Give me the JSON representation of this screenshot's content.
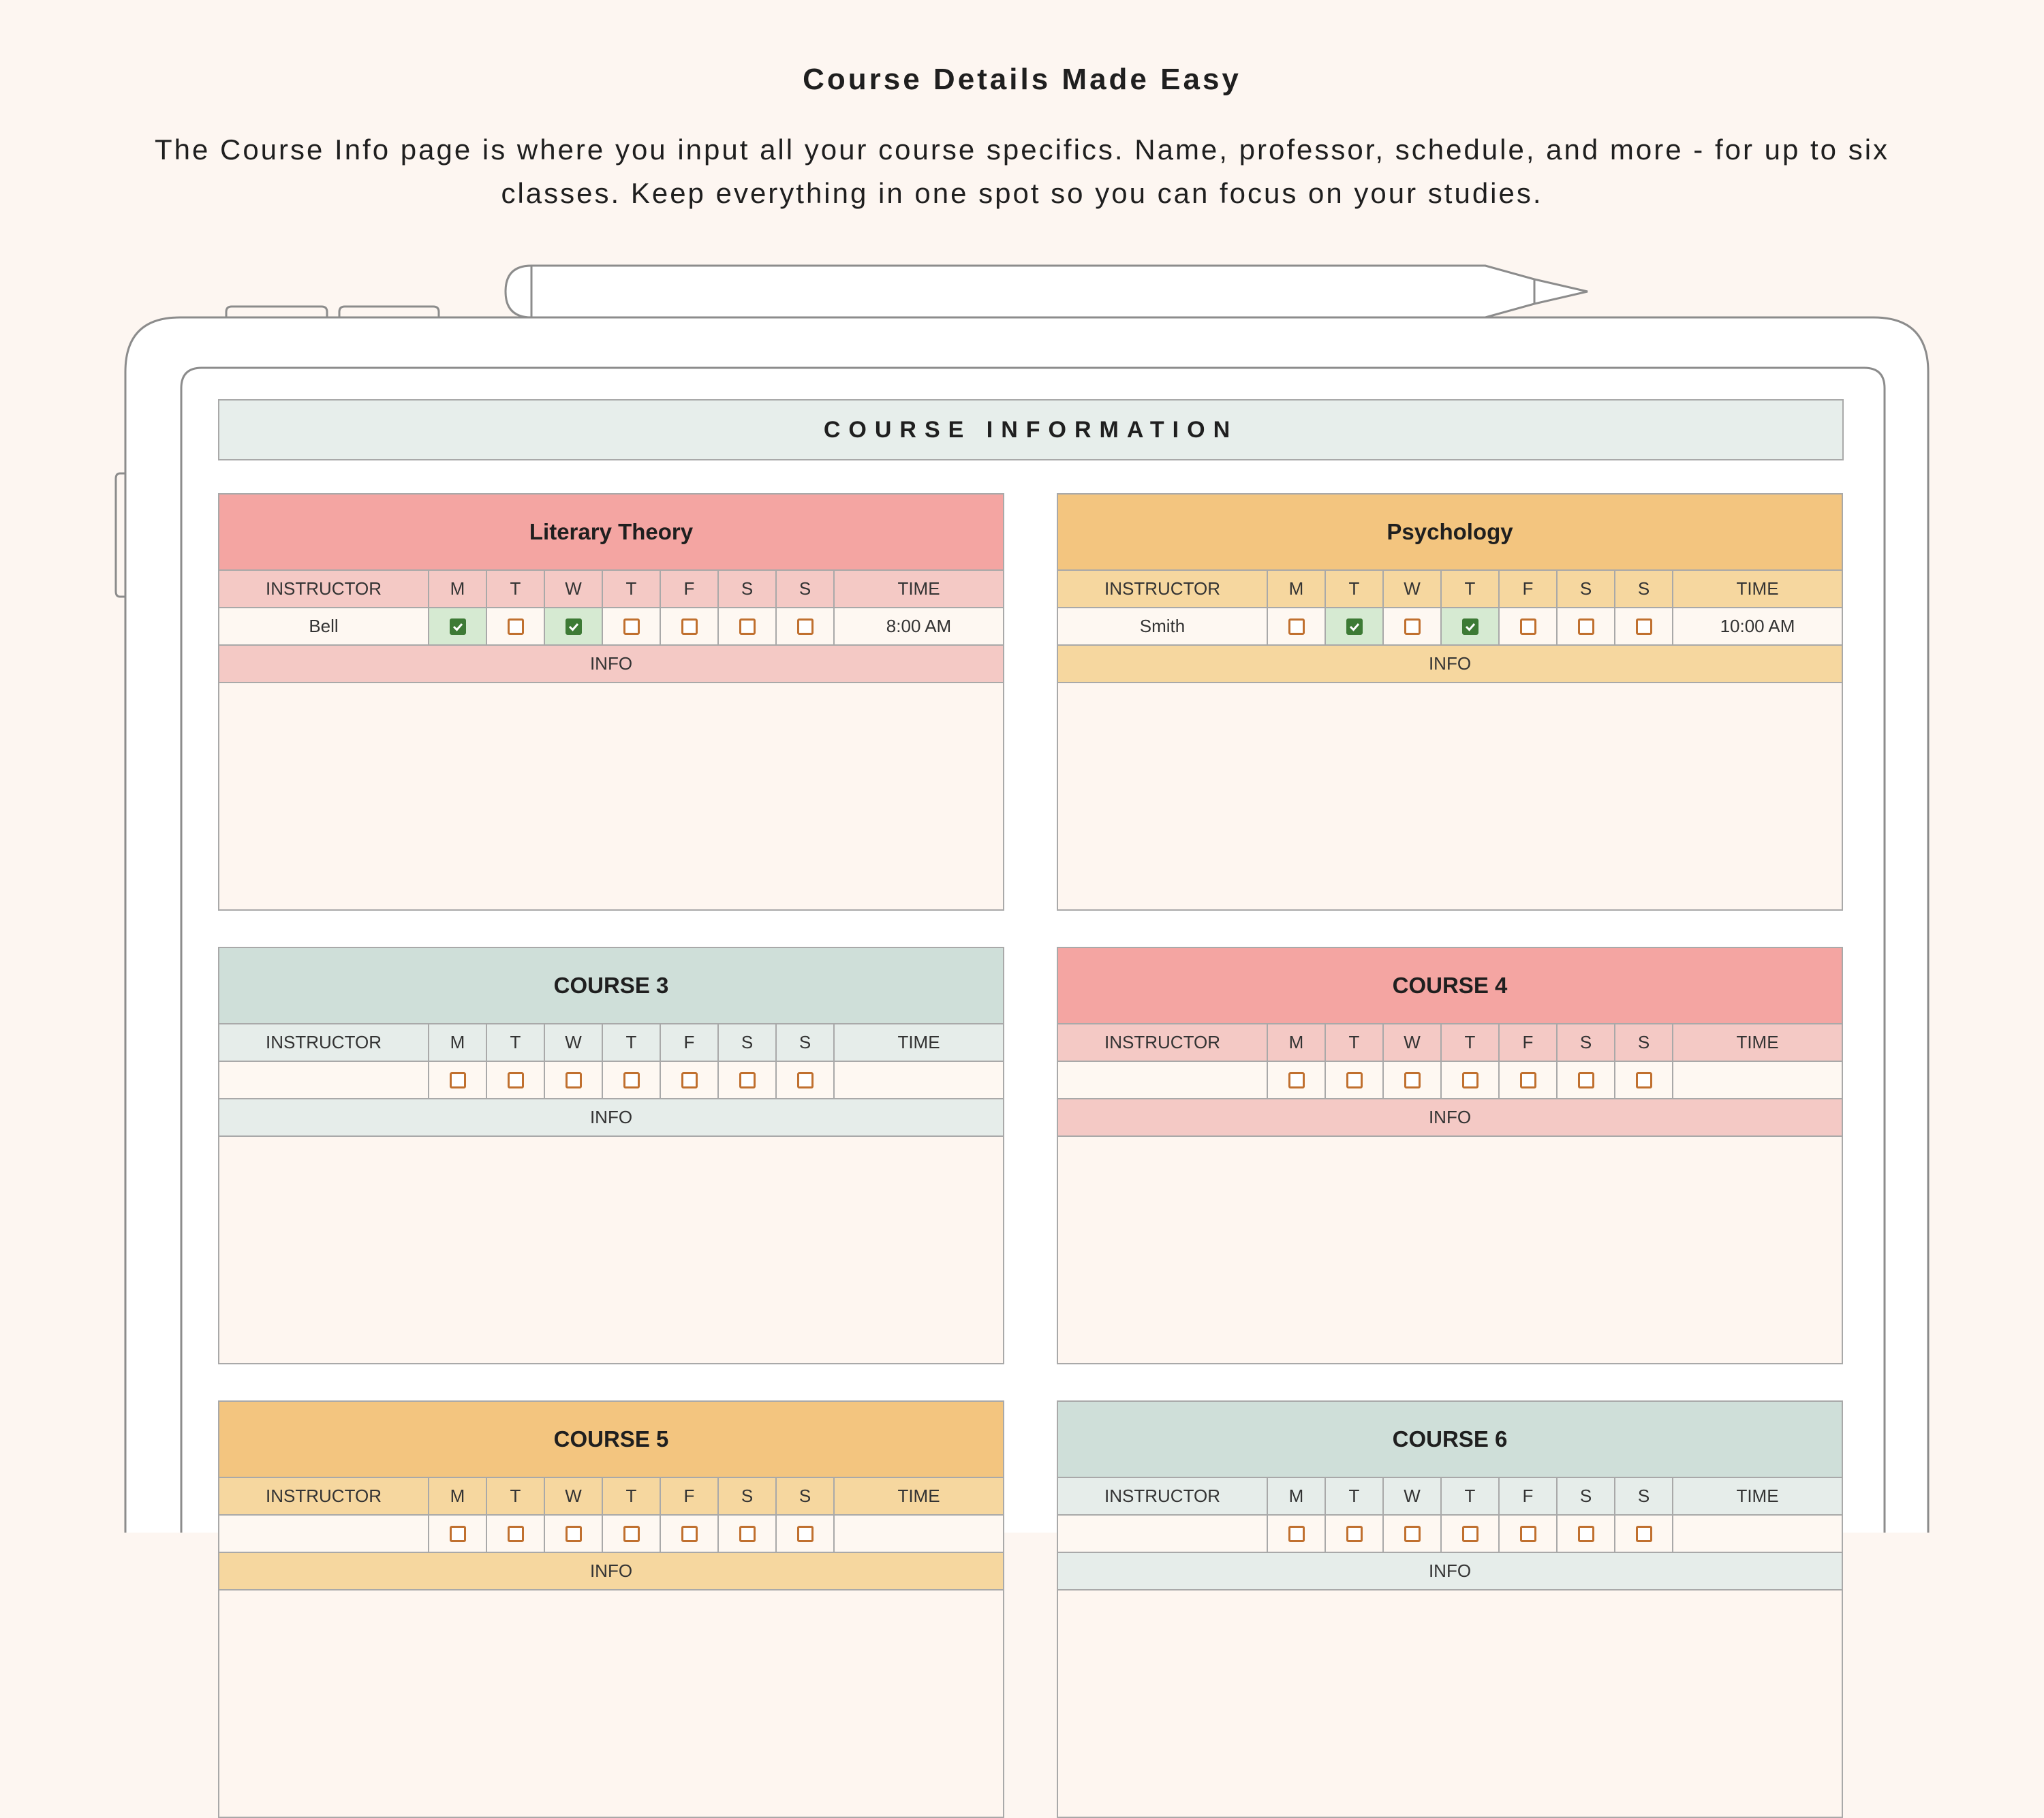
{
  "header": {
    "title": "Course Details Made Easy",
    "description": "The Course Info page is where you input all your course specifics. Name, professor, schedule, and more - for up to six classes. Keep everything in one spot so you can focus on your studies."
  },
  "sheet": {
    "title": "COURSE INFORMATION"
  },
  "labels": {
    "instructor": "INSTRUCTOR",
    "time": "TIME",
    "info": "INFO",
    "days": [
      "M",
      "T",
      "W",
      "T",
      "F",
      "S",
      "S"
    ]
  },
  "courses": [
    {
      "name": "Literary Theory",
      "instructor": "Bell",
      "time": "8:00 AM",
      "days": [
        true,
        false,
        true,
        false,
        false,
        false,
        false
      ],
      "theme": "red"
    },
    {
      "name": "Psychology",
      "instructor": "Smith",
      "time": "10:00 AM",
      "days": [
        false,
        true,
        false,
        true,
        false,
        false,
        false
      ],
      "theme": "amber"
    },
    {
      "name": "COURSE 3",
      "instructor": "",
      "time": "",
      "days": [
        false,
        false,
        false,
        false,
        false,
        false,
        false
      ],
      "theme": "sage"
    },
    {
      "name": "COURSE 4",
      "instructor": "",
      "time": "",
      "days": [
        false,
        false,
        false,
        false,
        false,
        false,
        false
      ],
      "theme": "red"
    },
    {
      "name": "COURSE 5",
      "instructor": "",
      "time": "",
      "days": [
        false,
        false,
        false,
        false,
        false,
        false,
        false
      ],
      "theme": "amber"
    },
    {
      "name": "COURSE 6",
      "instructor": "",
      "time": "",
      "days": [
        false,
        false,
        false,
        false,
        false,
        false,
        false
      ],
      "theme": "sage"
    }
  ],
  "colors": {
    "background": "#fdf6f1",
    "red_title": "#f4a5a2",
    "amber_title": "#f3c57f",
    "sage_title": "#cfdfd9",
    "checkbox": "#c0702f",
    "checked": "#3d7a35"
  },
  "icons": {
    "pencil": "stylus-pencil-icon",
    "checkbox": "checkbox-icon"
  }
}
